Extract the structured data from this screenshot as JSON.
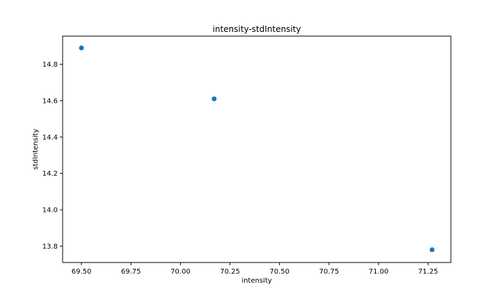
{
  "chart_data": {
    "type": "scatter",
    "title": "intensity-stdIntensity",
    "xlabel": "intensity",
    "ylabel": "stdIntensity",
    "xlim": [
      69.405,
      71.365
    ],
    "ylim": [
      13.71,
      14.955
    ],
    "xticks": [
      69.5,
      69.75,
      70.0,
      70.25,
      70.5,
      70.75,
      71.0,
      71.25
    ],
    "xtick_labels": [
      "69.50",
      "69.75",
      "70.00",
      "70.25",
      "70.50",
      "70.75",
      "71.00",
      "71.25"
    ],
    "yticks": [
      13.8,
      14.0,
      14.2,
      14.4,
      14.6,
      14.8
    ],
    "ytick_labels": [
      "13.8",
      "14.0",
      "14.2",
      "14.4",
      "14.6",
      "14.8"
    ],
    "grid": false,
    "point_color": "#1f77b4",
    "series": [
      {
        "points": [
          {
            "x": 69.5,
            "y": 14.89
          },
          {
            "x": 70.17,
            "y": 14.61
          },
          {
            "x": 71.27,
            "y": 13.78
          }
        ]
      }
    ]
  }
}
